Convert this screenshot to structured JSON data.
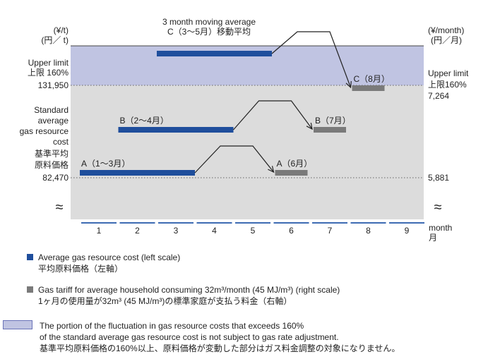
{
  "chart_data": {
    "type": "step-diagram",
    "x": {
      "label": "month",
      "label_jp": "月",
      "ticks": [
        "1",
        "2",
        "3",
        "4",
        "5",
        "6",
        "7",
        "8",
        "9"
      ]
    },
    "title": [
      "3 month moving average",
      "C（3〜5月）移動平均"
    ],
    "left_axis": {
      "unit": "(¥/t)",
      "unit_jp": "(円／ t)",
      "upper_limit": {
        "label": [
          "Upper limit",
          "上限 160%"
        ],
        "value": "131,950"
      },
      "standard": {
        "label": [
          "Standard",
          "average",
          "gas resource",
          "cost",
          "基準平均",
          "原料価格"
        ],
        "value": "82,470"
      }
    },
    "right_axis": {
      "unit": "(¥/month)",
      "unit_jp": "(円／月)",
      "upper_limit": {
        "label": [
          "Upper limit",
          "上限160%"
        ],
        "value": "7,264"
      },
      "standard": {
        "value": "5,881"
      }
    },
    "break_symbol": "≈",
    "colors": {
      "upper_band": "#c0c4e2",
      "grey_band": "#dcdcdc",
      "cost_bar": "#1f4e9c",
      "tariff_bar": "#7a7a7a"
    },
    "series": [
      {
        "name": "A",
        "label": "A（1〜3月）",
        "from_month": 1,
        "to_month": 3,
        "level": "standard",
        "tariff_label": "A（6月）",
        "tariff_month": 6
      },
      {
        "name": "B",
        "label": "B（2〜4月）",
        "from_month": 2,
        "to_month": 4,
        "level": "mid",
        "tariff_label": "B（7月）",
        "tariff_month": 7
      },
      {
        "name": "C",
        "label": "",
        "from_month": 3,
        "to_month": 5,
        "level": "above_upper",
        "tariff_label": "C（8月）",
        "tariff_month": 8
      }
    ]
  },
  "legend": {
    "cost": [
      "Average gas resource cost (left scale)",
      "平均原料価格（左軸）"
    ],
    "tariff": [
      "Gas tariff for average household consuming 32m³/month (45 MJ/m³) (right scale)",
      "1ヶ月の使用量が32m³ (45 MJ/m³)の標準家庭が支払う料金（右軸）"
    ],
    "portion": [
      "The portion of the fluctuation in gas resource costs that exceeds 160%",
      "of the standard average gas resource cost is not subject to gas rate adjustment.",
      "基準平均原料価格の160%以上、原料価格が変動した部分はガス料金調整の対象になりません。"
    ]
  }
}
